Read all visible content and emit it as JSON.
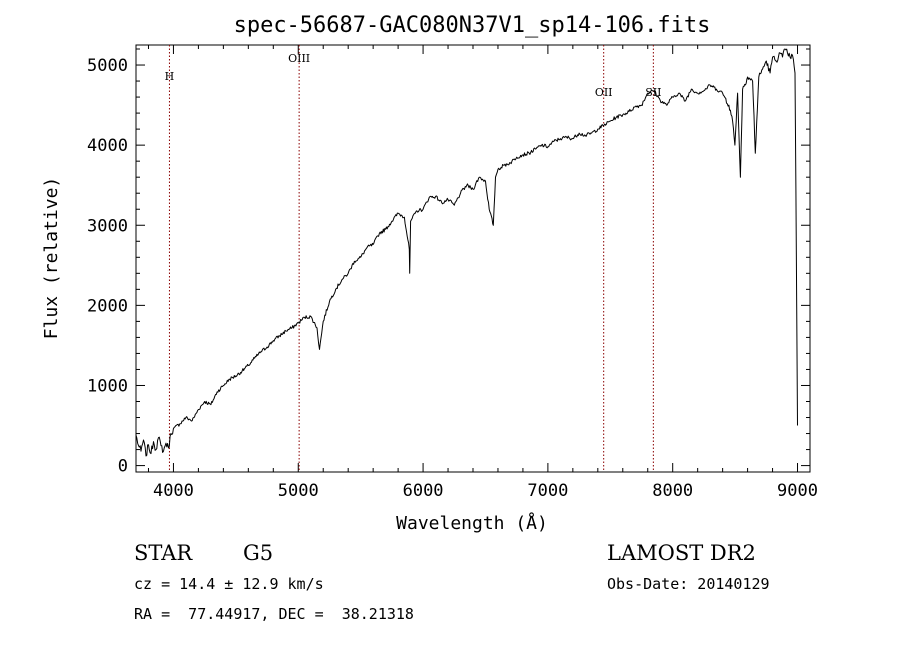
{
  "chart_data": {
    "type": "line",
    "title": "spec-56687-GAC080N37V1_sp14-106.fits",
    "xlabel": "Wavelength (Å)",
    "ylabel": "Flux (relative)",
    "xlim": [
      3700,
      9100
    ],
    "ylim": [
      -80,
      5250
    ],
    "xticks": [
      4000,
      5000,
      6000,
      7000,
      8000,
      9000
    ],
    "yticks": [
      0,
      1000,
      2000,
      3000,
      4000,
      5000
    ],
    "xtick_labels": [
      "4000",
      "5000",
      "6000",
      "7000",
      "8000",
      "9000"
    ],
    "ytick_labels": [
      "0",
      "1000",
      "2000",
      "3000",
      "4000",
      "5000"
    ],
    "series": [
      {
        "name": "spectrum",
        "x": [
          3700,
          3720,
          3740,
          3760,
          3780,
          3800,
          3820,
          3840,
          3860,
          3880,
          3900,
          3920,
          3940,
          3960,
          3980,
          4000,
          4050,
          4100,
          4150,
          4200,
          4250,
          4300,
          4350,
          4400,
          4450,
          4500,
          4550,
          4600,
          4650,
          4700,
          4750,
          4800,
          4850,
          4900,
          4950,
          5000,
          5050,
          5100,
          5150,
          5170,
          5200,
          5250,
          5300,
          5350,
          5400,
          5450,
          5500,
          5550,
          5600,
          5650,
          5700,
          5750,
          5800,
          5850,
          5890,
          5893,
          5900,
          5950,
          6000,
          6050,
          6100,
          6150,
          6200,
          6250,
          6300,
          6350,
          6400,
          6450,
          6500,
          6530,
          6563,
          6580,
          6600,
          6650,
          6700,
          6750,
          6800,
          6850,
          6900,
          6950,
          7000,
          7050,
          7100,
          7150,
          7200,
          7250,
          7300,
          7350,
          7400,
          7450,
          7500,
          7550,
          7600,
          7650,
          7700,
          7750,
          7800,
          7850,
          7900,
          7950,
          8000,
          8050,
          8100,
          8150,
          8200,
          8250,
          8300,
          8350,
          8400,
          8450,
          8480,
          8498,
          8520,
          8542,
          8560,
          8600,
          8640,
          8662,
          8690,
          8720,
          8750,
          8780,
          8800,
          8830,
          8860,
          8880,
          8900,
          8920,
          8940,
          8960,
          8980,
          9000
        ],
        "y": [
          380,
          250,
          180,
          320,
          120,
          260,
          150,
          300,
          200,
          350,
          250,
          180,
          280,
          220,
          400,
          460,
          520,
          600,
          560,
          700,
          800,
          760,
          920,
          1000,
          1080,
          1120,
          1180,
          1250,
          1340,
          1420,
          1480,
          1560,
          1620,
          1680,
          1720,
          1780,
          1850,
          1860,
          1720,
          1450,
          1800,
          2050,
          2200,
          2320,
          2400,
          2550,
          2600,
          2720,
          2760,
          2900,
          2950,
          3050,
          3150,
          3100,
          2700,
          2400,
          3050,
          3180,
          3200,
          3350,
          3360,
          3280,
          3320,
          3250,
          3400,
          3500,
          3450,
          3600,
          3550,
          3200,
          3000,
          3600,
          3700,
          3750,
          3780,
          3850,
          3880,
          3900,
          3950,
          4000,
          3980,
          4050,
          4080,
          4100,
          4080,
          4150,
          4120,
          4150,
          4200,
          4250,
          4300,
          4350,
          4380,
          4420,
          4480,
          4500,
          4650,
          4680,
          4560,
          4500,
          4600,
          4650,
          4550,
          4700,
          4650,
          4680,
          4750,
          4700,
          4650,
          4500,
          4300,
          4000,
          4650,
          3600,
          4700,
          4850,
          4800,
          3900,
          4850,
          4950,
          5050,
          4900,
          5100,
          5050,
          5150,
          5100,
          5200,
          5150,
          5100,
          5120,
          4900,
          500
        ]
      }
    ],
    "lines": [
      {
        "label": "H",
        "x": 3968
      },
      {
        "label": "OIII",
        "x": 5007
      },
      {
        "label": "OII",
        "x": 7447
      },
      {
        "label": "SII",
        "x": 7845
      }
    ],
    "colors": {
      "spectrum": "#000000",
      "lines": "#8b0000"
    }
  },
  "info": {
    "class": "STAR",
    "subclass": "G5",
    "survey": "LAMOST DR2",
    "cz": "cz = 14.4 ± 12.9 km/s",
    "obs_date": "Obs-Date: 20140129",
    "coords": "RA =  77.44917, DEC =  38.21318"
  }
}
